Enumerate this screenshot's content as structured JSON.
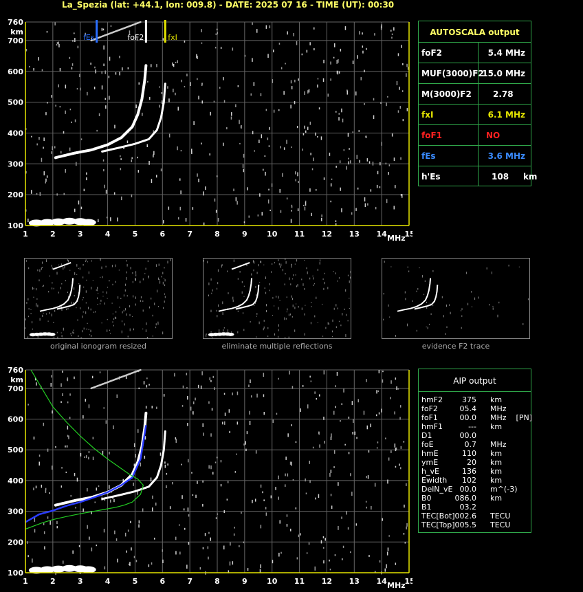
{
  "header": {
    "title": "La_Spezia (lat: +44.1, lon: 009.8) - DATE: 2025 07 16 - TIME (UT): 00:30"
  },
  "colors": {
    "axis": "#e6e600",
    "grid": "#666666",
    "panel_border": "#2fa84a",
    "trace": "#ffffff",
    "fEs": "#2a6fff",
    "fxI": "#e6e600",
    "foF1": "#ff2020",
    "aip_profile": "#2a3cff",
    "aip_model": "#22cc22"
  },
  "chart_data": [
    {
      "type": "scatter",
      "name": "main ionogram",
      "xlabel": "MHz",
      "ylabel": "km",
      "xlim": [
        1,
        15
      ],
      "ylim": [
        100,
        760
      ],
      "x_ticks": [
        "1",
        "2",
        "3",
        "4",
        "5",
        "6",
        "7",
        "8",
        "9",
        "10",
        "11",
        "12",
        "13",
        "14",
        "15"
      ],
      "y_ticks": [
        "100",
        "200",
        "300",
        "400",
        "500",
        "600",
        "700",
        "760"
      ],
      "markers": [
        {
          "label": "fEs",
          "x": 3.6
        },
        {
          "label": "foF2",
          "x": 5.4
        },
        {
          "label": "fxI",
          "x": 6.1
        }
      ],
      "traces": {
        "o_F2": {
          "x": [
            2.1,
            2.8,
            3.4,
            4.0,
            4.5,
            4.9,
            5.1,
            5.25,
            5.35,
            5.4
          ],
          "y": [
            320,
            335,
            345,
            362,
            385,
            420,
            460,
            510,
            570,
            620
          ]
        },
        "x_F2": {
          "x": [
            3.8,
            4.4,
            5.0,
            5.5,
            5.8,
            5.95,
            6.05,
            6.1
          ],
          "y": [
            340,
            352,
            365,
            380,
            410,
            450,
            500,
            560
          ]
        },
        "Es": {
          "x": [
            1.4,
            1.8,
            2.2,
            2.6,
            3.0,
            3.3
          ],
          "y": [
            108,
            110,
            112,
            114,
            113,
            110
          ]
        },
        "multiple": {
          "x": [
            3.4,
            4.0,
            4.6,
            5.2
          ],
          "y": [
            700,
            720,
            740,
            760
          ]
        }
      }
    },
    {
      "type": "scatter",
      "name": "AIP ionogram",
      "xlabel": "MHz",
      "ylabel": "km",
      "xlim": [
        1,
        15
      ],
      "ylim": [
        100,
        760
      ],
      "x_ticks": [
        "1",
        "2",
        "3",
        "4",
        "5",
        "6",
        "7",
        "8",
        "9",
        "10",
        "11",
        "12",
        "13",
        "14",
        "15"
      ],
      "y_ticks": [
        "100",
        "200",
        "300",
        "400",
        "500",
        "600",
        "700",
        "760"
      ],
      "series": [
        {
          "x": [
            1.0,
            1.5,
            2.0,
            2.5,
            3.0,
            3.5,
            4.0,
            4.5,
            4.9,
            5.2,
            5.4
          ],
          "y": [
            265,
            290,
            302,
            318,
            330,
            345,
            362,
            385,
            410,
            470,
            580
          ]
        },
        {
          "x": [
            1.2,
            1.6,
            2.0,
            2.5,
            3.0,
            3.5,
            4.0,
            4.4,
            4.8,
            5.1,
            5.3,
            5.2,
            4.9,
            4.6,
            4.3,
            4.0,
            3.5,
            3.0,
            2.5,
            2.0,
            1.6,
            1.3,
            1.0
          ],
          "y": [
            760,
            700,
            640,
            590,
            545,
            505,
            470,
            445,
            420,
            405,
            385,
            355,
            330,
            320,
            313,
            308,
            300,
            292,
            283,
            273,
            262,
            252,
            242
          ]
        }
      ]
    }
  ],
  "autoscala": {
    "title": "AUTOSCALA output",
    "rows": [
      {
        "label": "foF2",
        "value": "5.4 MHz",
        "label_color": "#ffffff",
        "value_color": "#ffffff"
      },
      {
        "label": "MUF(3000)F2",
        "value": "15.0 MHz",
        "label_color": "#ffffff",
        "value_color": "#ffffff"
      },
      {
        "label": "M(3000)F2",
        "value": "2.78",
        "label_color": "#ffffff",
        "value_color": "#ffffff"
      },
      {
        "label": "fxI",
        "value": "6.1 MHz",
        "label_color": "#e6e600",
        "value_color": "#e6e600"
      },
      {
        "label": "foF1",
        "value": "NO",
        "label_color": "#ff2020",
        "value_color": "#ff2020"
      },
      {
        "label": "fEs",
        "value": "3.6 MHz",
        "label_color": "#3a8bff",
        "value_color": "#3a8bff"
      },
      {
        "label": "h'Es",
        "value": "108     km",
        "label_color": "#ffffff",
        "value_color": "#ffffff"
      }
    ]
  },
  "thumbnails": [
    {
      "caption": "original ionogram resized"
    },
    {
      "caption": "eliminate multiple reflections"
    },
    {
      "caption": "evidence F2 trace"
    }
  ],
  "aip": {
    "title": "AIP output",
    "rows": [
      {
        "name": "hmF2",
        "value": "375",
        "unit": "km"
      },
      {
        "name": "foF2",
        "value": "05.4",
        "unit": "MHz"
      },
      {
        "name": "foF1",
        "value": "00.0",
        "unit": "MHz    [PN]"
      },
      {
        "name": "hmF1",
        "value": "---",
        "unit": "km"
      },
      {
        "name": "D1",
        "value": "00.0",
        "unit": ""
      },
      {
        "name": "foE",
        "value": "0.7",
        "unit": "MHz"
      },
      {
        "name": "hmE",
        "value": "110",
        "unit": "km"
      },
      {
        "name": "ymE",
        "value": "20",
        "unit": "km"
      },
      {
        "name": "h_vE",
        "value": "136",
        "unit": "km"
      },
      {
        "name": "Ewidth",
        "value": "102",
        "unit": "km"
      },
      {
        "name": "DelN_vE",
        "value": "00.0",
        "unit": "m^(-3)"
      },
      {
        "name": "B0",
        "value": "086.0",
        "unit": "km"
      },
      {
        "name": "B1",
        "value": "03.2",
        "unit": ""
      },
      {
        "name": "TEC[Bot]",
        "value": "002.6",
        "unit": "TECU"
      },
      {
        "name": "TEC[Top]",
        "value": "005.5",
        "unit": "TECU"
      }
    ]
  }
}
